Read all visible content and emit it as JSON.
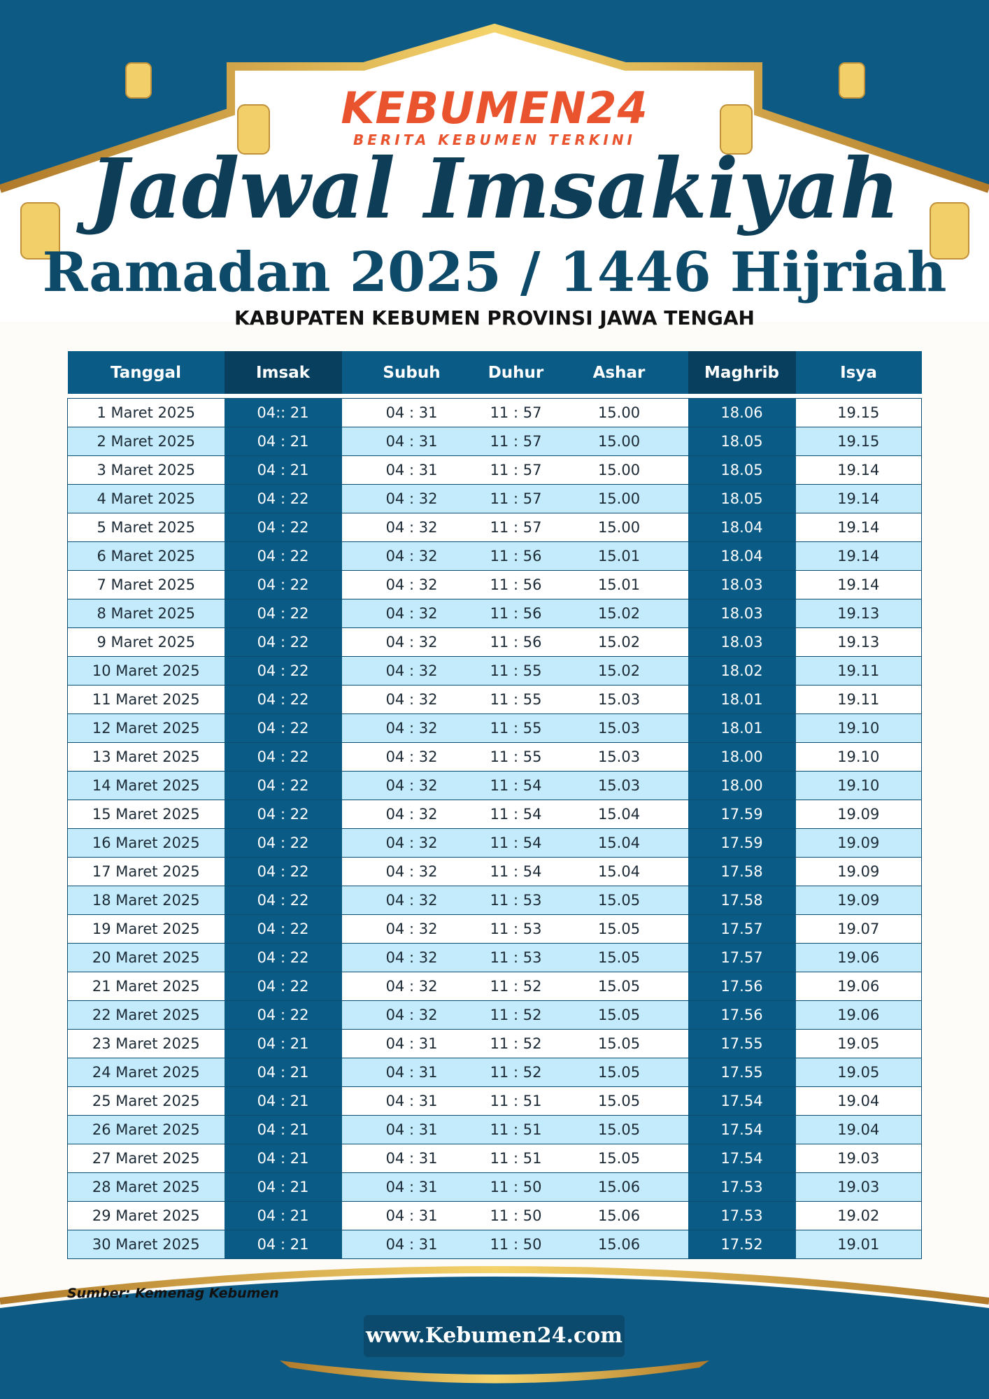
{
  "header": {
    "logo": "KEBUMEN24",
    "tagline": "BERITA KEBUMEN TERKINI",
    "title": "Jadwal Imsakiyah",
    "subtitle": "Ramadan 2025 / 1446 Hijriah",
    "location": "KABUPATEN KEBUMEN PROVINSI JAWA TENGAH"
  },
  "table": {
    "columns": [
      "Tanggal",
      "Imsak",
      "Subuh",
      "Duhur",
      "Ashar",
      "Maghrib",
      "Isya"
    ],
    "rows": [
      [
        "1 Maret 2025",
        "04:: 21",
        "04 : 31",
        "11 : 57",
        "15.00",
        "18.06",
        "19.15"
      ],
      [
        "2 Maret 2025",
        "04 : 21",
        "04 : 31",
        "11 : 57",
        "15.00",
        "18.05",
        "19.15"
      ],
      [
        "3 Maret 2025",
        "04 : 21",
        "04 : 31",
        "11 : 57",
        "15.00",
        "18.05",
        "19.14"
      ],
      [
        "4 Maret 2025",
        "04 : 22",
        "04 : 32",
        "11 : 57",
        "15.00",
        "18.05",
        "19.14"
      ],
      [
        "5 Maret 2025",
        "04 : 22",
        "04 : 32",
        "11 : 57",
        "15.00",
        "18.04",
        "19.14"
      ],
      [
        "6 Maret 2025",
        "04 : 22",
        "04 : 32",
        "11 : 56",
        "15.01",
        "18.04",
        "19.14"
      ],
      [
        "7 Maret 2025",
        "04 : 22",
        "04 : 32",
        "11 : 56",
        "15.01",
        "18.03",
        "19.14"
      ],
      [
        "8 Maret 2025",
        "04 : 22",
        "04 : 32",
        "11 : 56",
        "15.02",
        "18.03",
        "19.13"
      ],
      [
        "9 Maret 2025",
        "04 : 22",
        "04 : 32",
        "11 : 56",
        "15.02",
        "18.03",
        "19.13"
      ],
      [
        "10 Maret 2025",
        "04 : 22",
        "04 : 32",
        "11 : 55",
        "15.02",
        "18.02",
        "19.11"
      ],
      [
        "11 Maret 2025",
        "04 : 22",
        "04 : 32",
        "11 : 55",
        "15.03",
        "18.01",
        "19.11"
      ],
      [
        "12 Maret 2025",
        "04 : 22",
        "04 : 32",
        "11 : 55",
        "15.03",
        "18.01",
        "19.10"
      ],
      [
        "13 Maret 2025",
        "04 : 22",
        "04 : 32",
        "11 : 55",
        "15.03",
        "18.00",
        "19.10"
      ],
      [
        "14 Maret 2025",
        "04 : 22",
        "04 : 32",
        "11 : 54",
        "15.03",
        "18.00",
        "19.10"
      ],
      [
        "15 Maret 2025",
        "04 : 22",
        "04 : 32",
        "11 : 54",
        "15.04",
        "17.59",
        "19.09"
      ],
      [
        "16 Maret 2025",
        "04 : 22",
        "04 : 32",
        "11 : 54",
        "15.04",
        "17.59",
        "19.09"
      ],
      [
        "17 Maret 2025",
        "04 : 22",
        "04 : 32",
        "11 : 54",
        "15.04",
        "17.58",
        "19.09"
      ],
      [
        "18 Maret 2025",
        "04 : 22",
        "04 : 32",
        "11 : 53",
        "15.05",
        "17.58",
        "19.09"
      ],
      [
        "19 Maret 2025",
        "04 : 22",
        "04 : 32",
        "11 : 53",
        "15.05",
        "17.57",
        "19.07"
      ],
      [
        "20 Maret 2025",
        "04 : 22",
        "04 : 32",
        "11 : 53",
        "15.05",
        "17.57",
        "19.06"
      ],
      [
        "21 Maret 2025",
        "04 : 22",
        "04 : 32",
        "11 : 52",
        "15.05",
        "17.56",
        "19.06"
      ],
      [
        "22 Maret 2025",
        "04 : 22",
        "04 : 32",
        "11 : 52",
        "15.05",
        "17.56",
        "19.06"
      ],
      [
        "23 Maret 2025",
        "04 : 21",
        "04 : 31",
        "11 : 52",
        "15.05",
        "17.55",
        "19.05"
      ],
      [
        "24 Maret 2025",
        "04 : 21",
        "04 : 31",
        "11 : 52",
        "15.05",
        "17.55",
        "19.05"
      ],
      [
        "25 Maret 2025",
        "04 : 21",
        "04 : 31",
        "11 : 51",
        "15.05",
        "17.54",
        "19.04"
      ],
      [
        "26 Maret 2025",
        "04 : 21",
        "04 : 31",
        "11 : 51",
        "15.05",
        "17.54",
        "19.04"
      ],
      [
        "27 Maret 2025",
        "04 : 21",
        "04 : 31",
        "11 : 51",
        "15.05",
        "17.54",
        "19.03"
      ],
      [
        "28 Maret 2025",
        "04 : 21",
        "04 : 31",
        "11 : 50",
        "15.06",
        "17.53",
        "19.03"
      ],
      [
        "29 Maret 2025",
        "04 : 21",
        "04 : 31",
        "11 : 50",
        "15.06",
        "17.53",
        "19.02"
      ],
      [
        "30 Maret 2025",
        "04 : 21",
        "04 : 31",
        "11 : 50",
        "15.06",
        "17.52",
        "19.01"
      ]
    ]
  },
  "footer": {
    "source": "Sumber: Kemenag Kebumen",
    "website": "www.Kebumen24.com"
  }
}
